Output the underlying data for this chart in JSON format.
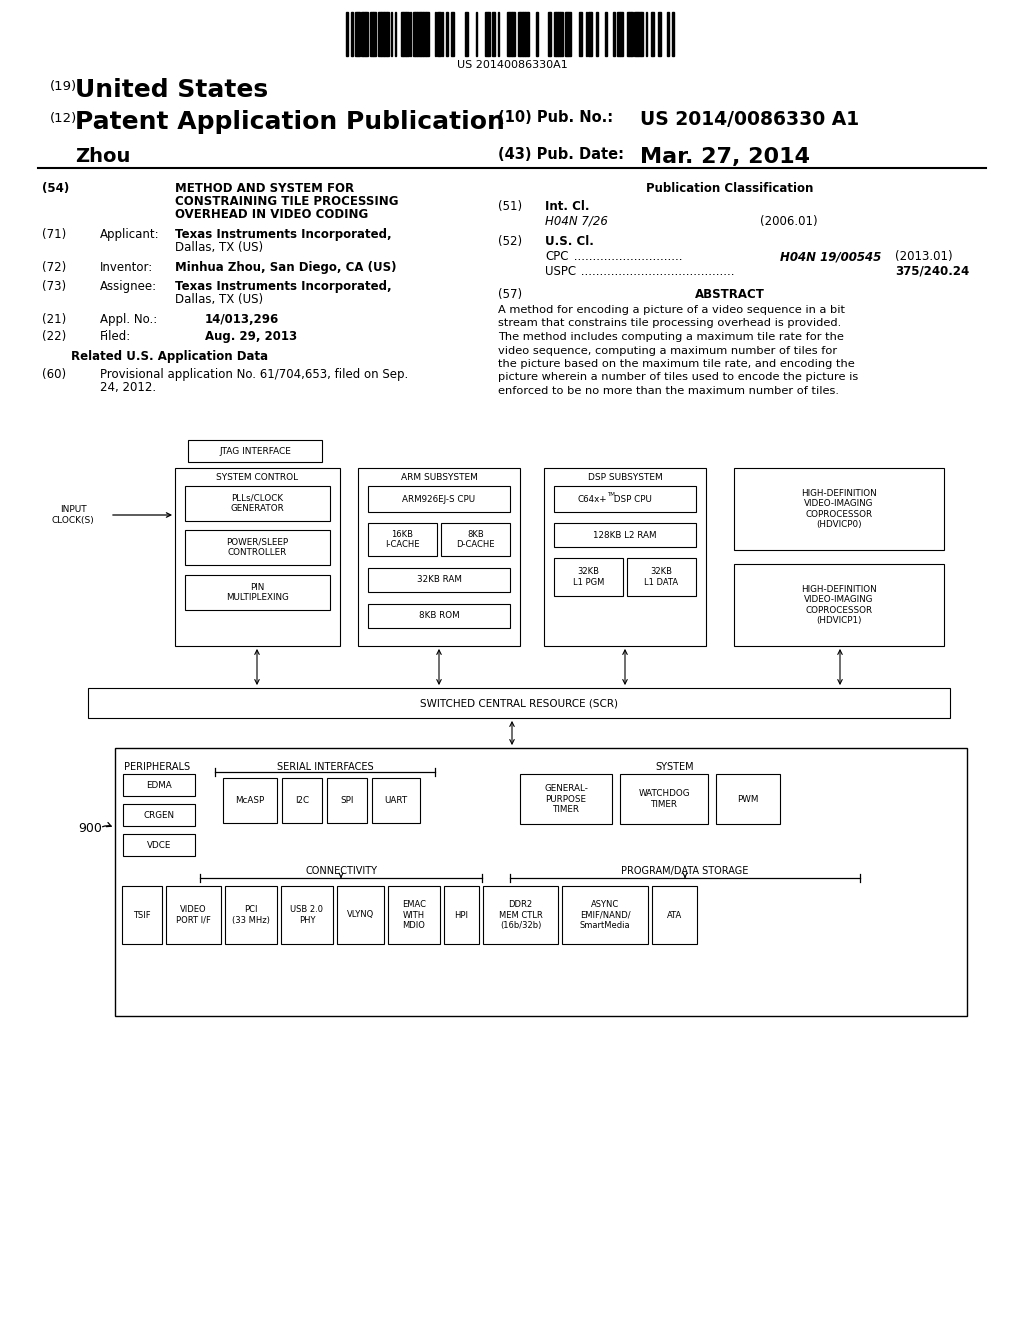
{
  "bg_color": "#ffffff",
  "barcode_text": "US 20140086330A1",
  "header": {
    "country_num": "(19)",
    "country": "United States",
    "type_num": "(12)",
    "type": "Patent Application Publication",
    "inventor": "Zhou",
    "pub_num_label": "(10) Pub. No.:",
    "pub_num": "US 2014/0086330 A1",
    "pub_date_label": "(43) Pub. Date:",
    "pub_date": "Mar. 27, 2014"
  },
  "left_column": {
    "title_num": "(54)",
    "title_line1": "METHOD AND SYSTEM FOR",
    "title_line2": "CONSTRAINING TILE PROCESSING",
    "title_line3": "OVERHEAD IN VIDEO CODING",
    "applicant_num": "(71)",
    "applicant_label": "Applicant:",
    "applicant_name": "Texas Instruments Incorporated,",
    "applicant_addr": "Dallas, TX (US)",
    "inventor_num": "(72)",
    "inventor_label": "Inventor:",
    "inventor_name": "Minhua Zhou, San Diego, CA (US)",
    "assignee_num": "(73)",
    "assignee_label": "Assignee:",
    "assignee_name": "Texas Instruments Incorporated,",
    "assignee_addr": "Dallas, TX (US)",
    "appl_num": "(21)",
    "appl_no_label": "Appl. No.:",
    "appl_no": "14/013,296",
    "filed_num": "(22)",
    "filed_label": "Filed:",
    "filed": "Aug. 29, 2013",
    "related_title": "Related U.S. Application Data",
    "related_num": "(60)",
    "related_line1": "Provisional application No. 61/704,653, filed on Sep.",
    "related_line2": "24, 2012."
  },
  "right_column": {
    "pub_class_title": "Publication Classification",
    "int_cl_num": "(51)",
    "int_cl_label": "Int. Cl.",
    "int_cl_val": "H04N 7/26",
    "int_cl_year": "(2006.01)",
    "us_cl_num": "(52)",
    "us_cl_label": "U.S. Cl.",
    "cpc_dots": "............................",
    "cpc_val": "H04N 19/00545",
    "cpc_year": "(2013.01)",
    "uspc_dots": ".................................................",
    "uspc_val": "375/240.24",
    "abstract_num": "(57)",
    "abstract_title": "ABSTRACT",
    "abstract_line1": "A method for encoding a picture of a video sequence in a bit",
    "abstract_line2": "stream that constrains tile processing overhead is provided.",
    "abstract_line3": "The method includes computing a maximum tile rate for the",
    "abstract_line4": "video sequence, computing a maximum number of tiles for",
    "abstract_line5": "the picture based on the maximum tile rate, and encoding the",
    "abstract_line6": "picture wherein a number of tiles used to encode the picture is",
    "abstract_line7": "enforced to be no more than the maximum number of tiles."
  },
  "diagram": {
    "jtag_label": "JTAG INTERFACE",
    "sys_ctrl_label": "SYSTEM CONTROL",
    "pll_label": "PLLs/CLOCK\nGENERATOR",
    "pwr_label": "POWER/SLEEP\nCONTROLLER",
    "pin_label": "PIN\nMULTIPLEXING",
    "input_clock_label": "INPUT\nCLOCK(S)",
    "arm_label": "ARM SUBSYSTEM",
    "arm_cpu_label": "ARM926EJ-S CPU",
    "icache_label": "16KB\nI-CACHE",
    "dcache_label": "8KB\nD-CACHE",
    "arm_ram_label": "32KB RAM",
    "arm_rom_label": "8KB ROM",
    "dsp_label": "DSP SUBSYSTEM",
    "dsp_cpu_label_pre": "C64x+",
    "dsp_cpu_label_tm": "TM",
    "dsp_cpu_label_post": " DSP CPU",
    "l2ram_label": "128KB L2 RAM",
    "l1pgm_label": "32KB\nL1 PGM",
    "l1data_label": "32KB\nL1 DATA",
    "hd0_label": "HIGH-DEFINITION\nVIDEO-IMAGING\nCOPROCESSOR\n(HDVICP0)",
    "hd1_label": "HIGH-DEFINITION\nVIDEO-IMAGING\nCOPROCESSOR\n(HDVICP1)",
    "scr_label": "SWITCHED CENTRAL RESOURCE (SCR)",
    "label_900": "900",
    "periph_label": "PERIPHERALS",
    "edma_label": "EDMA",
    "crgen_label": "CRGEN",
    "vdce_label": "VDCE",
    "serial_label": "SERIAL INTERFACES",
    "mcasp_label": "McASP",
    "i2c_label": "I2C",
    "spi_label": "SPI",
    "uart_label": "UART",
    "system_label": "SYSTEM",
    "gpt_label": "GENERAL-\nPURPOSE\nTIMER",
    "wdt_label": "WATCHDOG\nTIMER",
    "pwm_label": "PWM",
    "conn_label": "CONNECTIVITY",
    "pds_label": "PROGRAM/DATA STORAGE",
    "tsif_label": "TSIF",
    "vport_label": "VIDEO\nPORT I/F",
    "pci_label": "PCI\n(33 MHz)",
    "usb_label": "USB 2.0\nPHY",
    "vlynq_label": "VLYNQ",
    "emac_label": "EMAC\nWITH\nMDIO",
    "hpi_label": "HPI",
    "ddr2_label": "DDR2\nMEM CTLR\n(16b/32b)",
    "async_label": "ASYNC\nEMIF/NAND/\nSmartMedia",
    "ata_label": "ATA"
  }
}
